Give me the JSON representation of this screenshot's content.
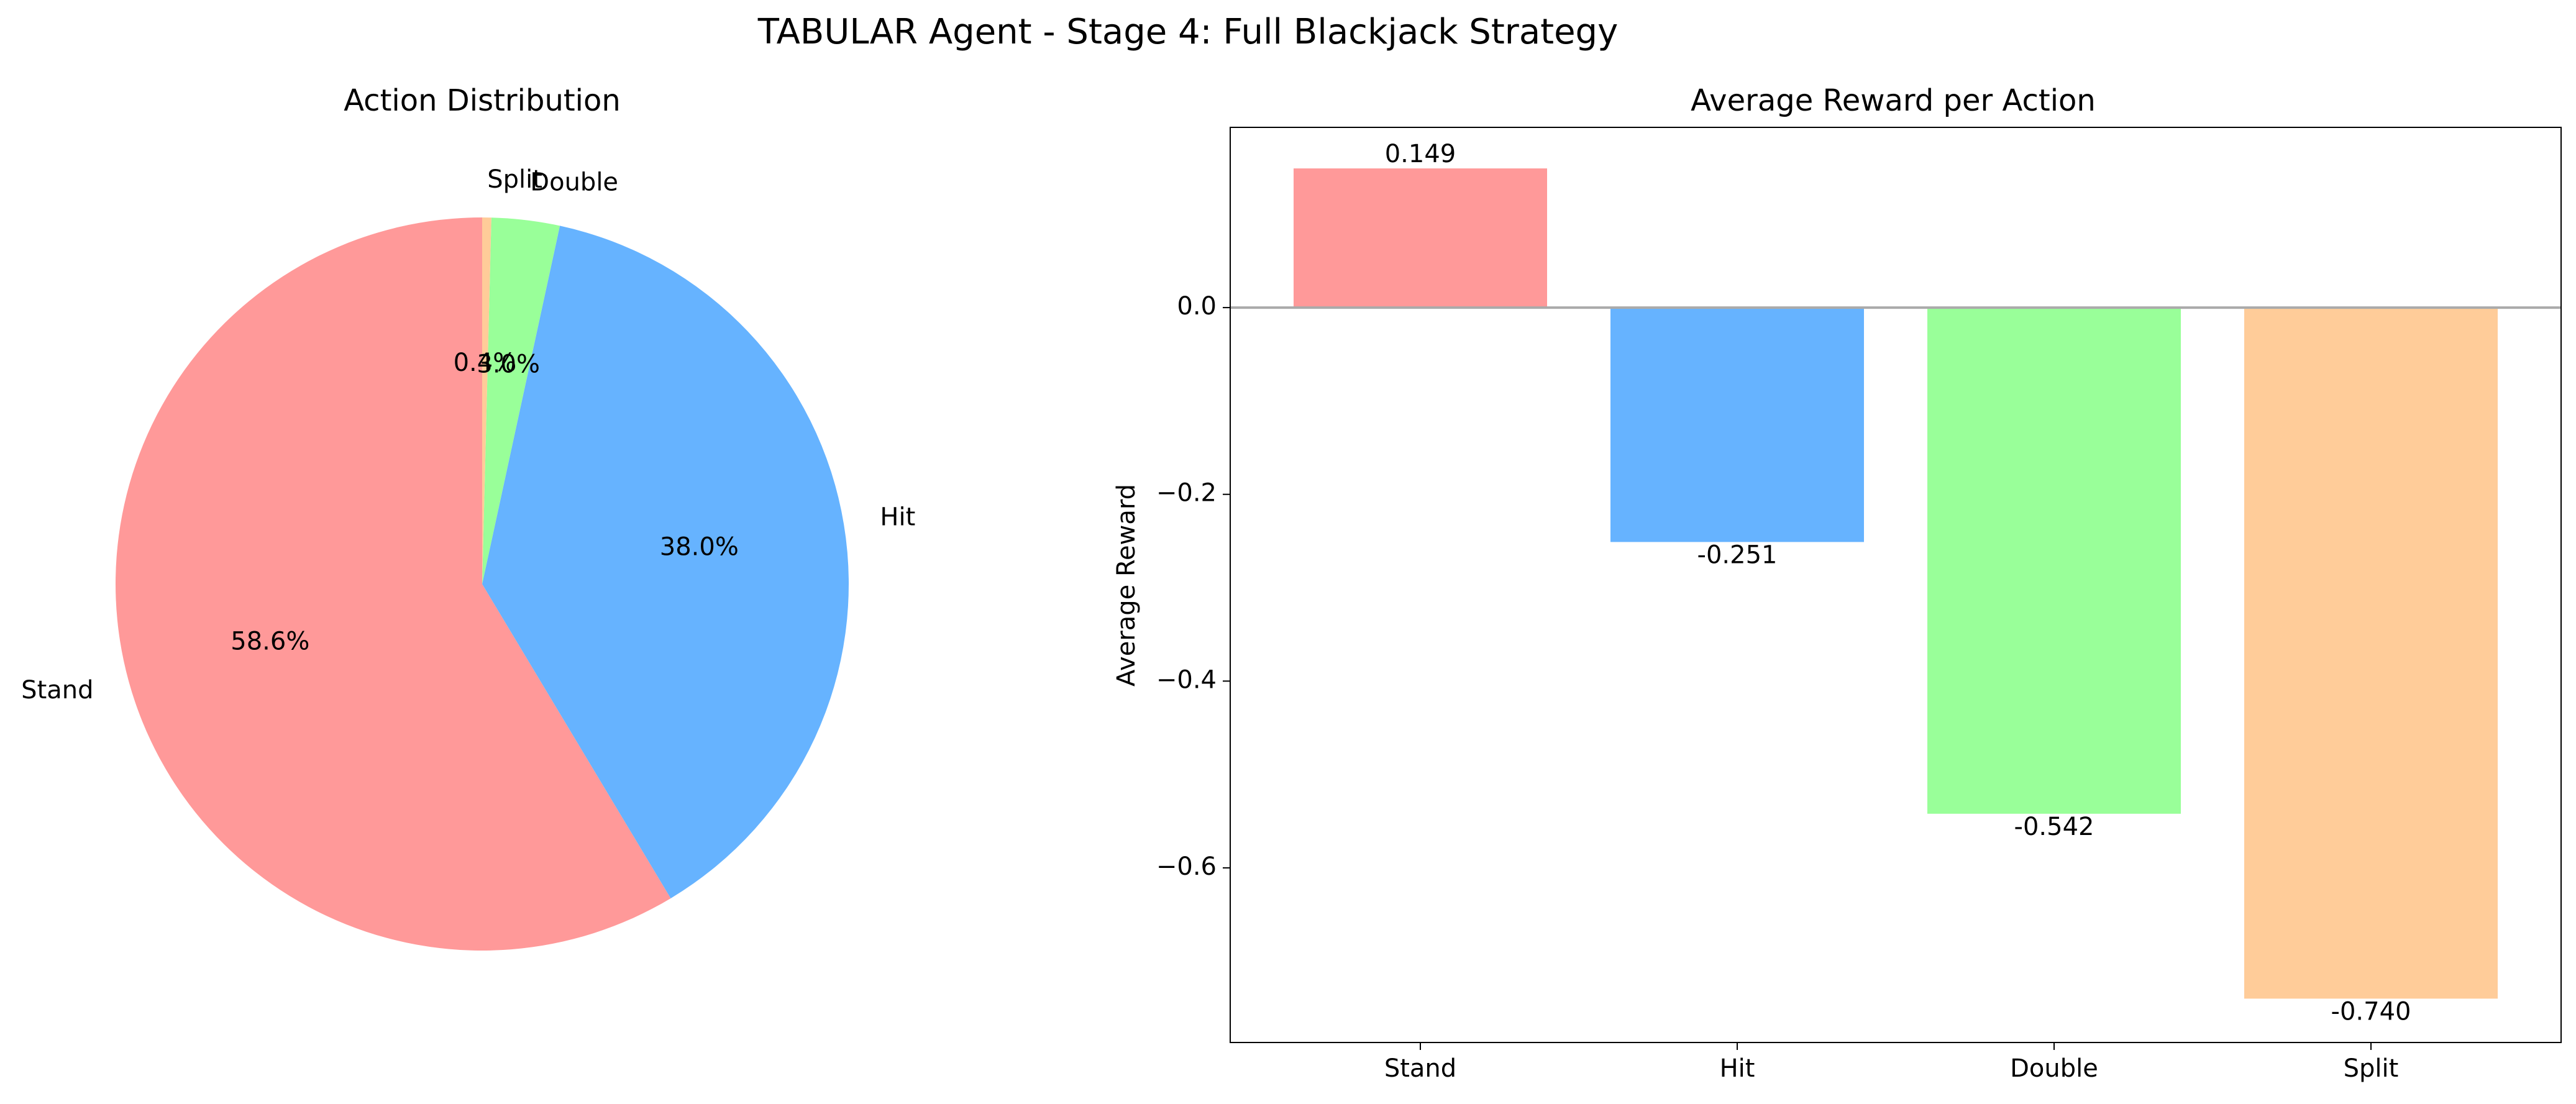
{
  "figure": {
    "title": "TABULAR Agent - Stage 4: Full Blackjack Strategy"
  },
  "colors": {
    "stand": "#ff9999",
    "hit": "#66b3ff",
    "double": "#99ff99",
    "split": "#ffcc99",
    "zero_line": "#aaaaaa",
    "axes": "#000000"
  },
  "chart_data": [
    {
      "type": "pie",
      "title": "Action Distribution",
      "start_angle_deg": 90,
      "direction": "counterclockwise",
      "slices": [
        {
          "label": "Stand",
          "value": 58.6,
          "pct_label": "58.6%",
          "color": "#ff9999"
        },
        {
          "label": "Hit",
          "value": 38.0,
          "pct_label": "38.0%",
          "color": "#66b3ff"
        },
        {
          "label": "Double",
          "value": 3.0,
          "pct_label": "3.0%",
          "color": "#99ff99"
        },
        {
          "label": "Split",
          "value": 0.4,
          "pct_label": "0.4%",
          "color": "#ffcc99"
        }
      ]
    },
    {
      "type": "bar",
      "title": "Average Reward per Action",
      "xlabel": "",
      "ylabel": "Average Reward",
      "categories": [
        "Stand",
        "Hit",
        "Double",
        "Split"
      ],
      "values": [
        0.149,
        -0.251,
        -0.542,
        -0.74
      ],
      "value_labels": [
        "0.149",
        "-0.251",
        "-0.542",
        "-0.740"
      ],
      "colors": [
        "#ff9999",
        "#66b3ff",
        "#99ff99",
        "#ffcc99"
      ],
      "ylim": [
        -0.787,
        0.193
      ],
      "yticks": [
        0.0,
        -0.2,
        -0.4,
        -0.6
      ],
      "ytick_labels": [
        "0.0",
        "−0.2",
        "−0.4",
        "−0.6"
      ],
      "zero_line": true,
      "grid": false
    }
  ]
}
